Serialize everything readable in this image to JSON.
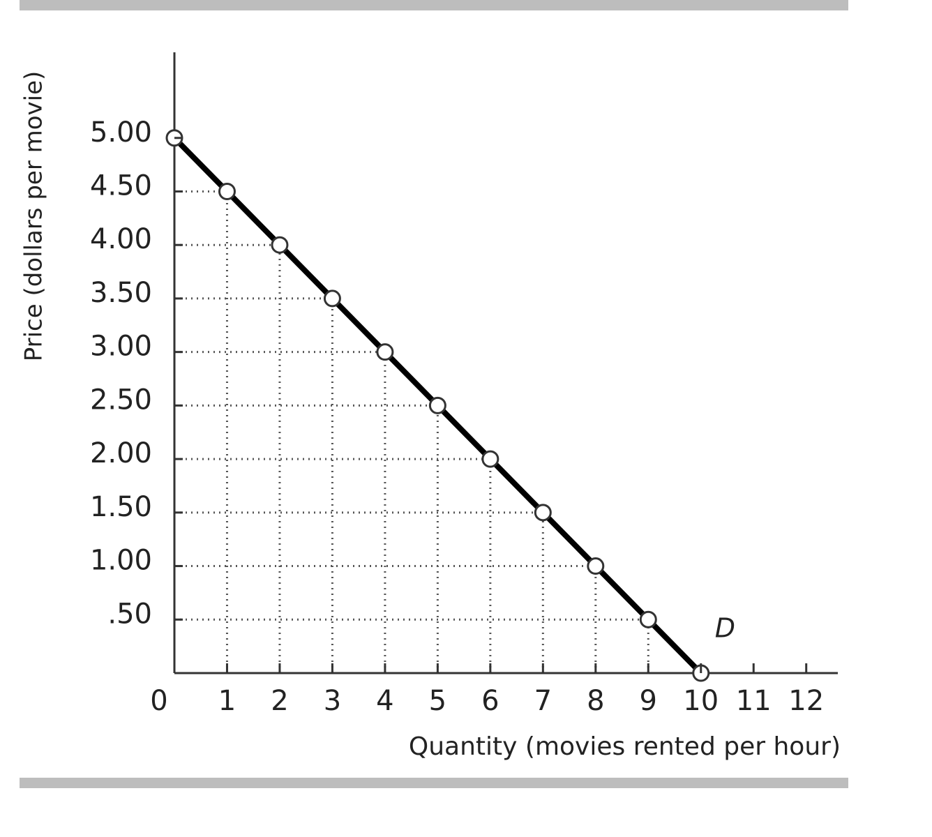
{
  "chart_data": {
    "type": "line",
    "x_label": "Quantity (movies rented per hour)",
    "y_label": "Price (dollars per movie)",
    "x": [
      0,
      1,
      2,
      3,
      4,
      5,
      6,
      7,
      8,
      9,
      10
    ],
    "series": [
      {
        "name": "D",
        "color": "#000000",
        "values": [
          5,
          4.5,
          4,
          3.5,
          3,
          2.5,
          2,
          1.5,
          1,
          0.5,
          0
        ]
      }
    ],
    "xlim": [
      0,
      12.6
    ],
    "ylim": [
      0,
      5.8
    ],
    "xticks": [
      0,
      1,
      2,
      3,
      4,
      5,
      6,
      7,
      8,
      9,
      10,
      11,
      12
    ],
    "yticks": [
      {
        "value": 0.5,
        "label": ".50"
      },
      {
        "value": 1,
        "label": "1.00"
      },
      {
        "value": 1.5,
        "label": "1.50"
      },
      {
        "value": 2,
        "label": "2.00"
      },
      {
        "value": 2.5,
        "label": "2.50"
      },
      {
        "value": 3,
        "label": "3.00"
      },
      {
        "value": 3.5,
        "label": "3.50"
      },
      {
        "value": 4,
        "label": "4.00"
      },
      {
        "value": 4.5,
        "label": "4.50"
      },
      {
        "value": 5,
        "label": "5.00"
      }
    ],
    "grid": false
  }
}
